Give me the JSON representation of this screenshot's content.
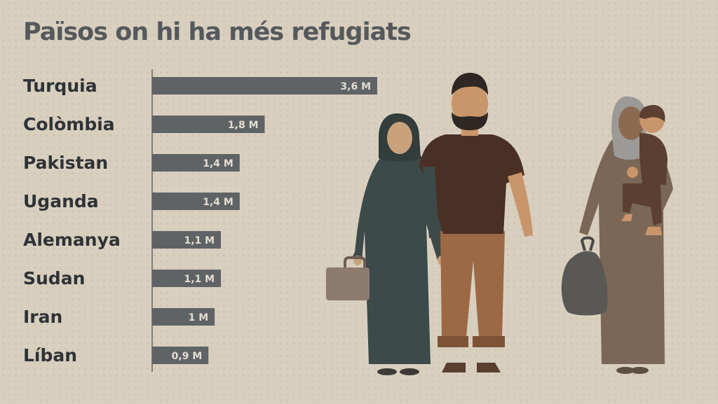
{
  "title": "Països on hi ha més refugiats",
  "colors": {
    "background": "#d8cfbf",
    "bar": "#5f6366",
    "bar_label": "#e3ddd2",
    "category_label": "#2f3336",
    "title": "#55595c"
  },
  "chart_data": {
    "type": "bar",
    "orientation": "horizontal",
    "title": "Països on hi ha més refugiats",
    "categories": [
      "Turquia",
      "Colòmbia",
      "Pakistan",
      "Uganda",
      "Alemanya",
      "Sudan",
      "Iran",
      "Líban"
    ],
    "values": [
      3.6,
      1.8,
      1.4,
      1.4,
      1.1,
      1.1,
      1.0,
      0.9
    ],
    "value_labels": [
      "3,6 M",
      "1,8 M",
      "1,4 M",
      "1,4 M",
      "1,1 M",
      "1,1 M",
      "1 M",
      "0,9 M"
    ],
    "unit": "M",
    "xlim": [
      0,
      3.6
    ],
    "grid": false,
    "legend": "none"
  },
  "illustration": {
    "description_icons": [
      "woman-with-hijab-figure",
      "man-figure",
      "suitcase-icon",
      "mother-carrying-child-figure",
      "bag-icon"
    ]
  }
}
